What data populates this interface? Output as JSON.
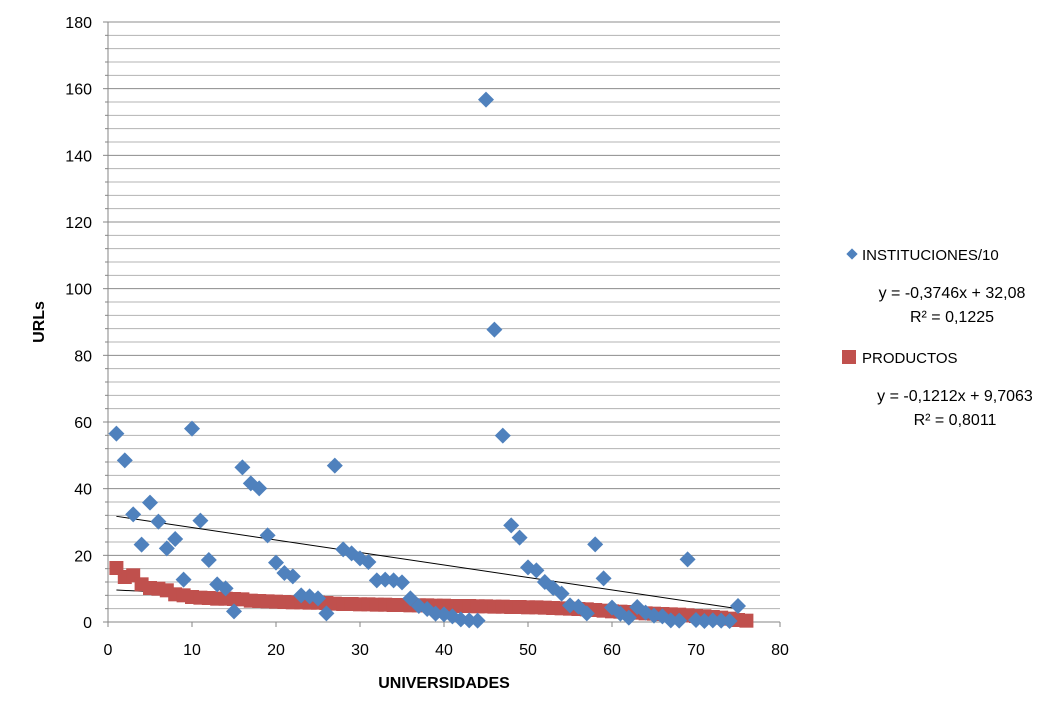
{
  "chart_data": {
    "type": "scatter",
    "title": "",
    "xlabel": "UNIVERSIDADES",
    "ylabel": "URLs",
    "xlim": [
      0,
      80
    ],
    "ylim": [
      0,
      180
    ],
    "x_ticks": [
      0,
      10,
      20,
      30,
      40,
      50,
      60,
      70,
      80
    ],
    "y_ticks": [
      0,
      20,
      40,
      60,
      80,
      100,
      120,
      140,
      160,
      180
    ],
    "grid": "horizontal, minor every 4",
    "legend_position": "right",
    "series": [
      {
        "name": "INSTITUCIONES/10",
        "color": "#4F81BD",
        "marker": "diamond",
        "trendline": {
          "slope": -0.3746,
          "intercept": 32.08,
          "x_range": [
            1,
            75
          ],
          "equation": "y = -0,3746x + 32,08",
          "r2": "R² = 0,1225"
        },
        "points": [
          [
            1,
            56.5
          ],
          [
            2,
            48.5
          ],
          [
            3,
            32.3
          ],
          [
            4,
            23.2
          ],
          [
            5,
            35.8
          ],
          [
            6,
            30.1
          ],
          [
            7,
            22.1
          ],
          [
            8,
            24.9
          ],
          [
            9,
            12.7
          ],
          [
            10,
            58.0
          ],
          [
            11,
            30.4
          ],
          [
            12,
            18.6
          ],
          [
            13,
            11.3
          ],
          [
            14,
            10.1
          ],
          [
            15,
            3.2
          ],
          [
            16,
            46.4
          ],
          [
            17,
            41.6
          ],
          [
            18,
            40.1
          ],
          [
            19,
            26.0
          ],
          [
            20,
            17.8
          ],
          [
            21,
            14.7
          ],
          [
            22,
            13.7
          ],
          [
            23,
            8.0
          ],
          [
            24,
            7.7
          ],
          [
            25,
            7.1
          ],
          [
            26,
            2.6
          ],
          [
            27,
            46.9
          ],
          [
            28,
            21.8
          ],
          [
            29,
            20.6
          ],
          [
            30,
            19.1
          ],
          [
            31,
            18.0
          ],
          [
            32,
            12.5
          ],
          [
            33,
            12.7
          ],
          [
            34,
            12.5
          ],
          [
            35,
            11.9
          ],
          [
            36,
            7.1
          ],
          [
            37,
            4.8
          ],
          [
            38,
            3.9
          ],
          [
            39,
            2.5
          ],
          [
            40,
            2.3
          ],
          [
            41,
            1.7
          ],
          [
            42,
            0.8
          ],
          [
            43,
            0.5
          ],
          [
            44,
            0.4
          ],
          [
            45,
            156.7
          ],
          [
            46,
            87.7
          ],
          [
            47,
            55.9
          ],
          [
            48,
            29.0
          ],
          [
            49,
            25.3
          ],
          [
            50,
            16.4
          ],
          [
            51,
            15.5
          ],
          [
            52,
            12.0
          ],
          [
            53,
            10.2
          ],
          [
            54,
            8.5
          ],
          [
            55,
            5.0
          ],
          [
            56,
            4.6
          ],
          [
            57,
            2.6
          ],
          [
            58,
            23.3
          ],
          [
            59,
            13.1
          ],
          [
            60,
            4.3
          ],
          [
            61,
            2.5
          ],
          [
            62,
            1.3
          ],
          [
            63,
            4.5
          ],
          [
            64,
            2.8
          ],
          [
            65,
            1.9
          ],
          [
            66,
            1.7
          ],
          [
            67,
            0.5
          ],
          [
            68,
            0.4
          ],
          [
            69,
            18.8
          ],
          [
            70,
            0.6
          ],
          [
            71,
            0.3
          ],
          [
            72,
            0.5
          ],
          [
            73,
            0.4
          ],
          [
            74,
            0.3
          ],
          [
            75,
            4.8
          ]
        ]
      },
      {
        "name": "PRODUCTOS",
        "color": "#C0504D",
        "marker": "square",
        "trendline": {
          "slope": -0.1212,
          "intercept": 9.7063,
          "x_range": [
            1,
            76
          ],
          "equation": "y = -0,1212x + 9,7063",
          "r2": "R² = 0,8011"
        },
        "points": [
          [
            1,
            16.2
          ],
          [
            2,
            13.5
          ],
          [
            3,
            14.0
          ],
          [
            4,
            11.3
          ],
          [
            5,
            10.2
          ],
          [
            6,
            10.0
          ],
          [
            7,
            9.5
          ],
          [
            8,
            8.3
          ],
          [
            9,
            8.0
          ],
          [
            10,
            7.5
          ],
          [
            11,
            7.3
          ],
          [
            12,
            7.2
          ],
          [
            13,
            7.0
          ],
          [
            14,
            7.0
          ],
          [
            15,
            6.9
          ],
          [
            16,
            6.8
          ],
          [
            17,
            6.4
          ],
          [
            18,
            6.3
          ],
          [
            19,
            6.2
          ],
          [
            20,
            6.1
          ],
          [
            21,
            6.0
          ],
          [
            22,
            5.9
          ],
          [
            23,
            5.9
          ],
          [
            24,
            5.8
          ],
          [
            25,
            5.8
          ],
          [
            26,
            5.7
          ],
          [
            27,
            5.5
          ],
          [
            28,
            5.4
          ],
          [
            29,
            5.4
          ],
          [
            30,
            5.3
          ],
          [
            31,
            5.3
          ],
          [
            32,
            5.2
          ],
          [
            33,
            5.2
          ],
          [
            34,
            5.1
          ],
          [
            35,
            5.1
          ],
          [
            36,
            5.0
          ],
          [
            37,
            5.0
          ],
          [
            38,
            5.0
          ],
          [
            39,
            4.9
          ],
          [
            40,
            4.9
          ],
          [
            41,
            4.8
          ],
          [
            42,
            4.8
          ],
          [
            43,
            4.8
          ],
          [
            44,
            4.7
          ],
          [
            45,
            4.7
          ],
          [
            46,
            4.6
          ],
          [
            47,
            4.6
          ],
          [
            48,
            4.5
          ],
          [
            49,
            4.5
          ],
          [
            50,
            4.4
          ],
          [
            51,
            4.4
          ],
          [
            52,
            4.3
          ],
          [
            53,
            4.2
          ],
          [
            54,
            4.1
          ],
          [
            55,
            4.0
          ],
          [
            56,
            3.9
          ],
          [
            57,
            3.8
          ],
          [
            58,
            3.6
          ],
          [
            59,
            3.4
          ],
          [
            60,
            3.2
          ],
          [
            61,
            3.1
          ],
          [
            62,
            3.0
          ],
          [
            63,
            2.8
          ],
          [
            64,
            2.6
          ],
          [
            65,
            2.5
          ],
          [
            66,
            2.4
          ],
          [
            67,
            2.3
          ],
          [
            68,
            2.2
          ],
          [
            69,
            2.0
          ],
          [
            70,
            1.8
          ],
          [
            71,
            1.7
          ],
          [
            72,
            1.5
          ],
          [
            73,
            1.3
          ],
          [
            74,
            1.0
          ],
          [
            75,
            0.6
          ],
          [
            76,
            0.4
          ]
        ]
      }
    ]
  }
}
